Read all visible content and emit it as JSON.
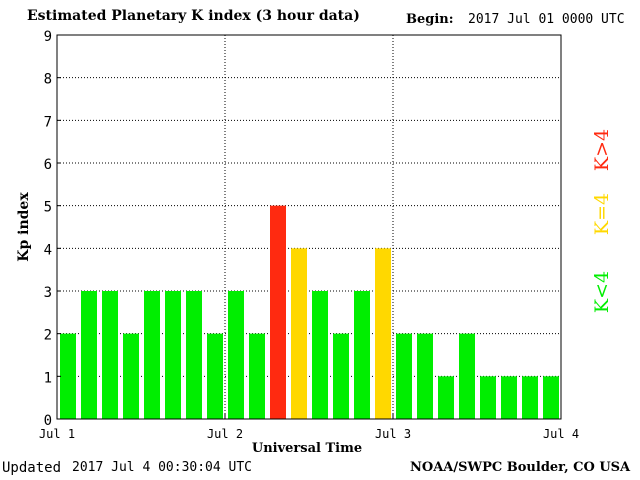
{
  "header": {
    "title": "Estimated Planetary K index (3 hour data)",
    "begin_label": "Begin:",
    "begin_value": "2017 Jul 01 0000 UTC"
  },
  "footer": {
    "updated_label": "Updated",
    "updated_value": "2017 Jul  4 00:30:04 UTC",
    "source": "NOAA/SWPC Boulder, CO USA"
  },
  "legend": {
    "low": "K<4",
    "mid": "K=4",
    "high": "K>4"
  },
  "colors": {
    "low": "#00ee00",
    "mid": "#ffd800",
    "high": "#ff2a10",
    "grid": "#000000"
  },
  "chart_data": {
    "type": "bar",
    "xlabel": "Universal Time",
    "ylabel": "Kp index",
    "ylim": [
      0,
      9
    ],
    "yticks": [
      0,
      1,
      2,
      3,
      4,
      5,
      6,
      7,
      8,
      9
    ],
    "x_ticks": [
      "Jul 1",
      "Jul 2",
      "Jul 3",
      "Jul 4"
    ],
    "grid": true,
    "interval_hours": 3,
    "values": [
      2,
      3,
      3,
      2,
      3,
      3,
      3,
      2,
      3,
      2,
      5,
      4,
      3,
      2,
      3,
      4,
      2,
      2,
      1,
      2,
      1,
      1,
      1,
      1
    ]
  }
}
